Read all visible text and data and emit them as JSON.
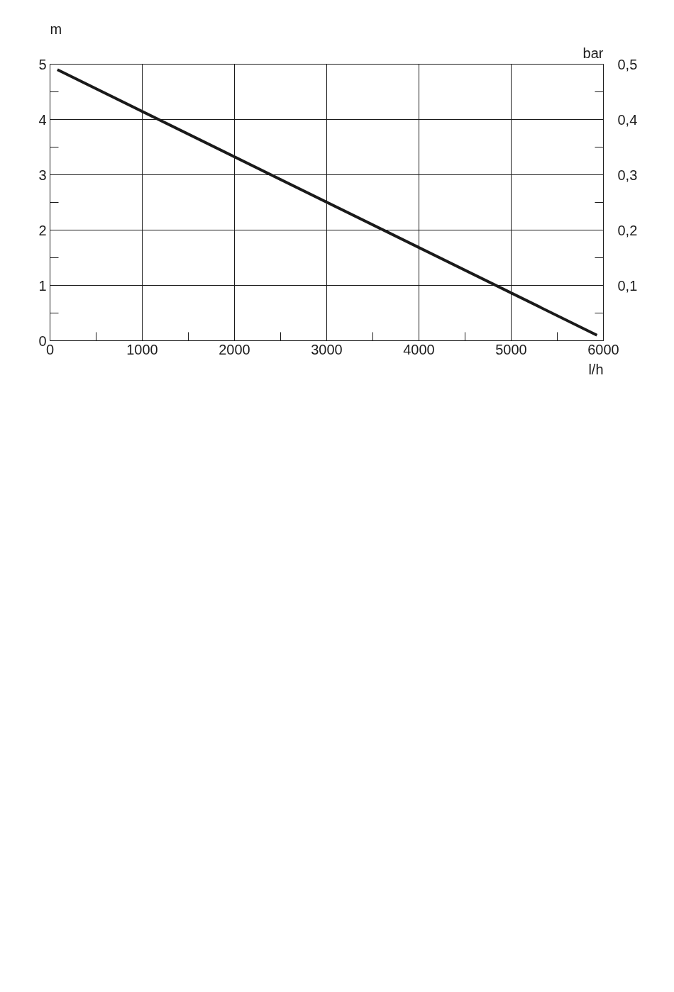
{
  "chart_data": {
    "type": "line",
    "ylabel": "m",
    "y2label": "bar",
    "xlabel": "l/h",
    "x": [
      80,
      5930
    ],
    "series": [
      {
        "color": "#1a1a1a",
        "values": [
          4.9,
          0.1
        ]
      }
    ],
    "xlim": [
      0,
      6000
    ],
    "xticks": [
      0,
      1000,
      2000,
      3000,
      4000,
      5000,
      6000
    ],
    "ylim": [
      0,
      5
    ],
    "yticks": [
      0,
      1,
      2,
      3,
      4,
      5
    ],
    "y2lim": [
      0,
      0.5
    ],
    "y2ticks": [
      {
        "value": 0.1,
        "label": "0,1"
      },
      {
        "value": 0.2,
        "label": "0,2"
      },
      {
        "value": 0.3,
        "label": "0,3"
      },
      {
        "value": 0.4,
        "label": "0,4"
      },
      {
        "value": 0.5,
        "label": "0,5"
      }
    ],
    "grid": true,
    "marker": "none",
    "line_style": "solid"
  }
}
